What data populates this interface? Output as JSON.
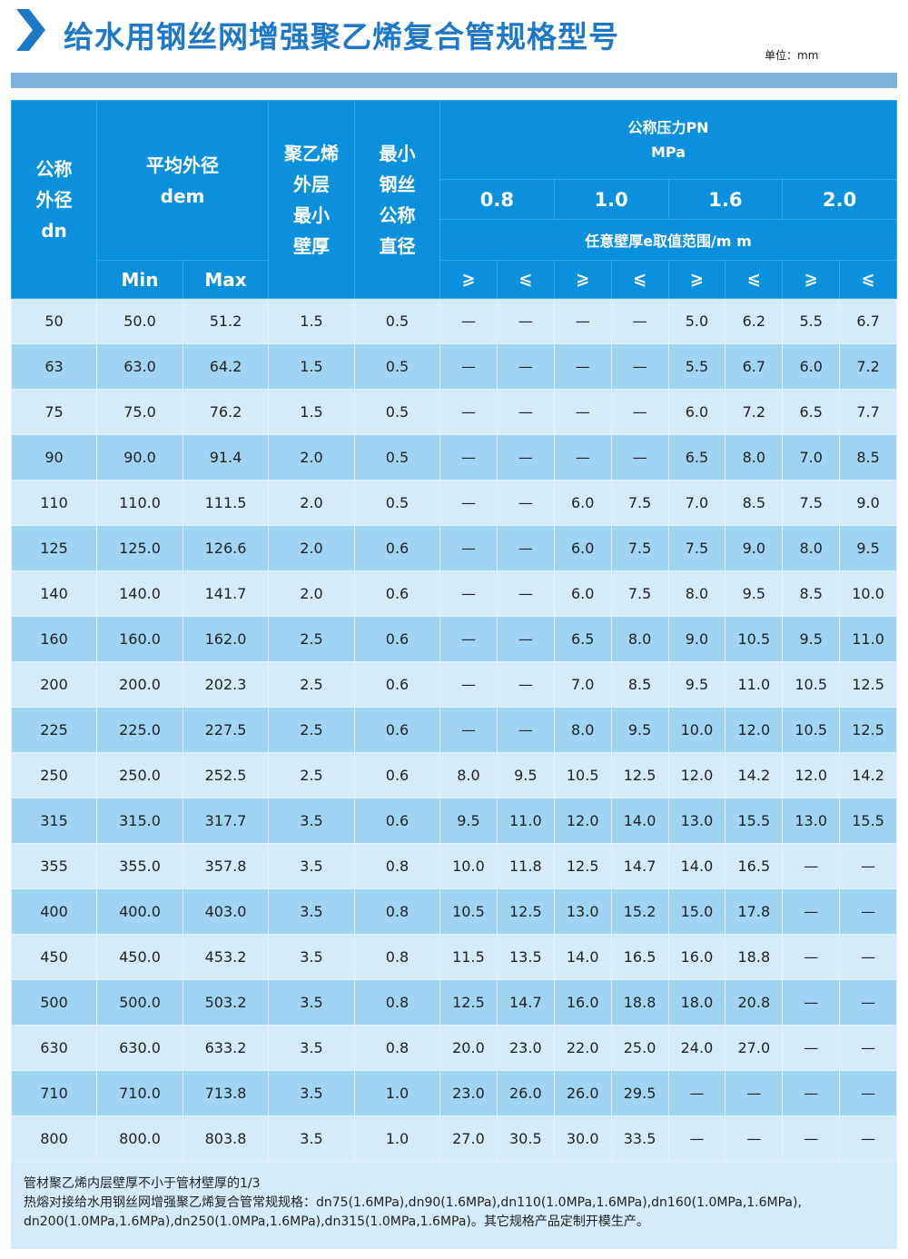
{
  "title": "给水用钢丝网增强聚乙烯复合管规格型号",
  "unit": "单位：mm",
  "colors": {
    "header_bg": "#0a90dd",
    "title": "#1e78c8",
    "row_light": "#d5ebfa",
    "row_dark": "#9fd4f3",
    "band": "#80b2e0"
  },
  "header": {
    "dn": [
      "公称",
      "外径",
      "dn"
    ],
    "dem": [
      "平均外径",
      "dem"
    ],
    "min": "Min",
    "max": "Max",
    "pe": [
      "聚乙烯",
      "外层",
      "最小",
      "壁厚"
    ],
    "wire": [
      "最小",
      "钢丝",
      "公称",
      "直径"
    ],
    "pn": [
      "公称压力PN",
      "MPa"
    ],
    "pn_values": [
      "0.8",
      "1.0",
      "1.6",
      "2.0"
    ],
    "range": "任意壁厚e取值范围/m m",
    "ge": "⩾",
    "le": "⩽"
  },
  "rows": [
    [
      "50",
      "50.0",
      "51.2",
      "1.5",
      "0.5",
      "—",
      "—",
      "—",
      "—",
      "5.0",
      "6.2",
      "5.5",
      "6.7"
    ],
    [
      "63",
      "63.0",
      "64.2",
      "1.5",
      "0.5",
      "—",
      "—",
      "—",
      "—",
      "5.5",
      "6.7",
      "6.0",
      "7.2"
    ],
    [
      "75",
      "75.0",
      "76.2",
      "1.5",
      "0.5",
      "—",
      "—",
      "—",
      "—",
      "6.0",
      "7.2",
      "6.5",
      "7.7"
    ],
    [
      "90",
      "90.0",
      "91.4",
      "2.0",
      "0.5",
      "—",
      "—",
      "—",
      "—",
      "6.5",
      "8.0",
      "7.0",
      "8.5"
    ],
    [
      "110",
      "110.0",
      "111.5",
      "2.0",
      "0.5",
      "—",
      "—",
      "6.0",
      "7.5",
      "7.0",
      "8.5",
      "7.5",
      "9.0"
    ],
    [
      "125",
      "125.0",
      "126.6",
      "2.0",
      "0.6",
      "—",
      "—",
      "6.0",
      "7.5",
      "7.5",
      "9.0",
      "8.0",
      "9.5"
    ],
    [
      "140",
      "140.0",
      "141.7",
      "2.0",
      "0.6",
      "—",
      "—",
      "6.0",
      "7.5",
      "8.0",
      "9.5",
      "8.5",
      "10.0"
    ],
    [
      "160",
      "160.0",
      "162.0",
      "2.5",
      "0.6",
      "—",
      "—",
      "6.5",
      "8.0",
      "9.0",
      "10.5",
      "9.5",
      "11.0"
    ],
    [
      "200",
      "200.0",
      "202.3",
      "2.5",
      "0.6",
      "—",
      "—",
      "7.0",
      "8.5",
      "9.5",
      "11.0",
      "10.5",
      "12.5"
    ],
    [
      "225",
      "225.0",
      "227.5",
      "2.5",
      "0.6",
      "—",
      "—",
      "8.0",
      "9.5",
      "10.0",
      "12.0",
      "10.5",
      "12.5"
    ],
    [
      "250",
      "250.0",
      "252.5",
      "2.5",
      "0.6",
      "8.0",
      "9.5",
      "10.5",
      "12.5",
      "12.0",
      "14.2",
      "12.0",
      "14.2"
    ],
    [
      "315",
      "315.0",
      "317.7",
      "3.5",
      "0.6",
      "9.5",
      "11.0",
      "12.0",
      "14.0",
      "13.0",
      "15.5",
      "13.0",
      "15.5"
    ],
    [
      "355",
      "355.0",
      "357.8",
      "3.5",
      "0.8",
      "10.0",
      "11.8",
      "12.5",
      "14.7",
      "14.0",
      "16.5",
      "—",
      "—"
    ],
    [
      "400",
      "400.0",
      "403.0",
      "3.5",
      "0.8",
      "10.5",
      "12.5",
      "13.0",
      "15.2",
      "15.0",
      "17.8",
      "—",
      "—"
    ],
    [
      "450",
      "450.0",
      "453.2",
      "3.5",
      "0.8",
      "11.5",
      "13.5",
      "14.0",
      "16.5",
      "16.0",
      "18.8",
      "—",
      "—"
    ],
    [
      "500",
      "500.0",
      "503.2",
      "3.5",
      "0.8",
      "12.5",
      "14.7",
      "16.0",
      "18.8",
      "18.0",
      "20.8",
      "—",
      "—"
    ],
    [
      "630",
      "630.0",
      "633.2",
      "3.5",
      "0.8",
      "20.0",
      "23.0",
      "22.0",
      "25.0",
      "24.0",
      "27.0",
      "—",
      "—"
    ],
    [
      "710",
      "710.0",
      "713.8",
      "3.5",
      "1.0",
      "23.0",
      "26.0",
      "26.0",
      "29.5",
      "—",
      "—",
      "—",
      "—"
    ],
    [
      "800",
      "800.0",
      "803.8",
      "3.5",
      "1.0",
      "27.0",
      "30.5",
      "30.0",
      "33.5",
      "—",
      "—",
      "—",
      "—"
    ]
  ],
  "footnote": [
    "管材聚乙烯内层壁厚不小于管材壁厚的1/3",
    "热熔对接给水用钢丝网增强聚乙烯复合管常规规格：dn75(1.6MPa),dn90(1.6MPa),dn110(1.0MPa,1.6MPa),dn160(1.0MPa,1.6MPa),",
    "dn200(1.0MPa,1.6MPa),dn250(1.0MPa,1.6MPa),dn315(1.0MPa,1.6MPa)。其它规格产品定制开模生产。"
  ]
}
